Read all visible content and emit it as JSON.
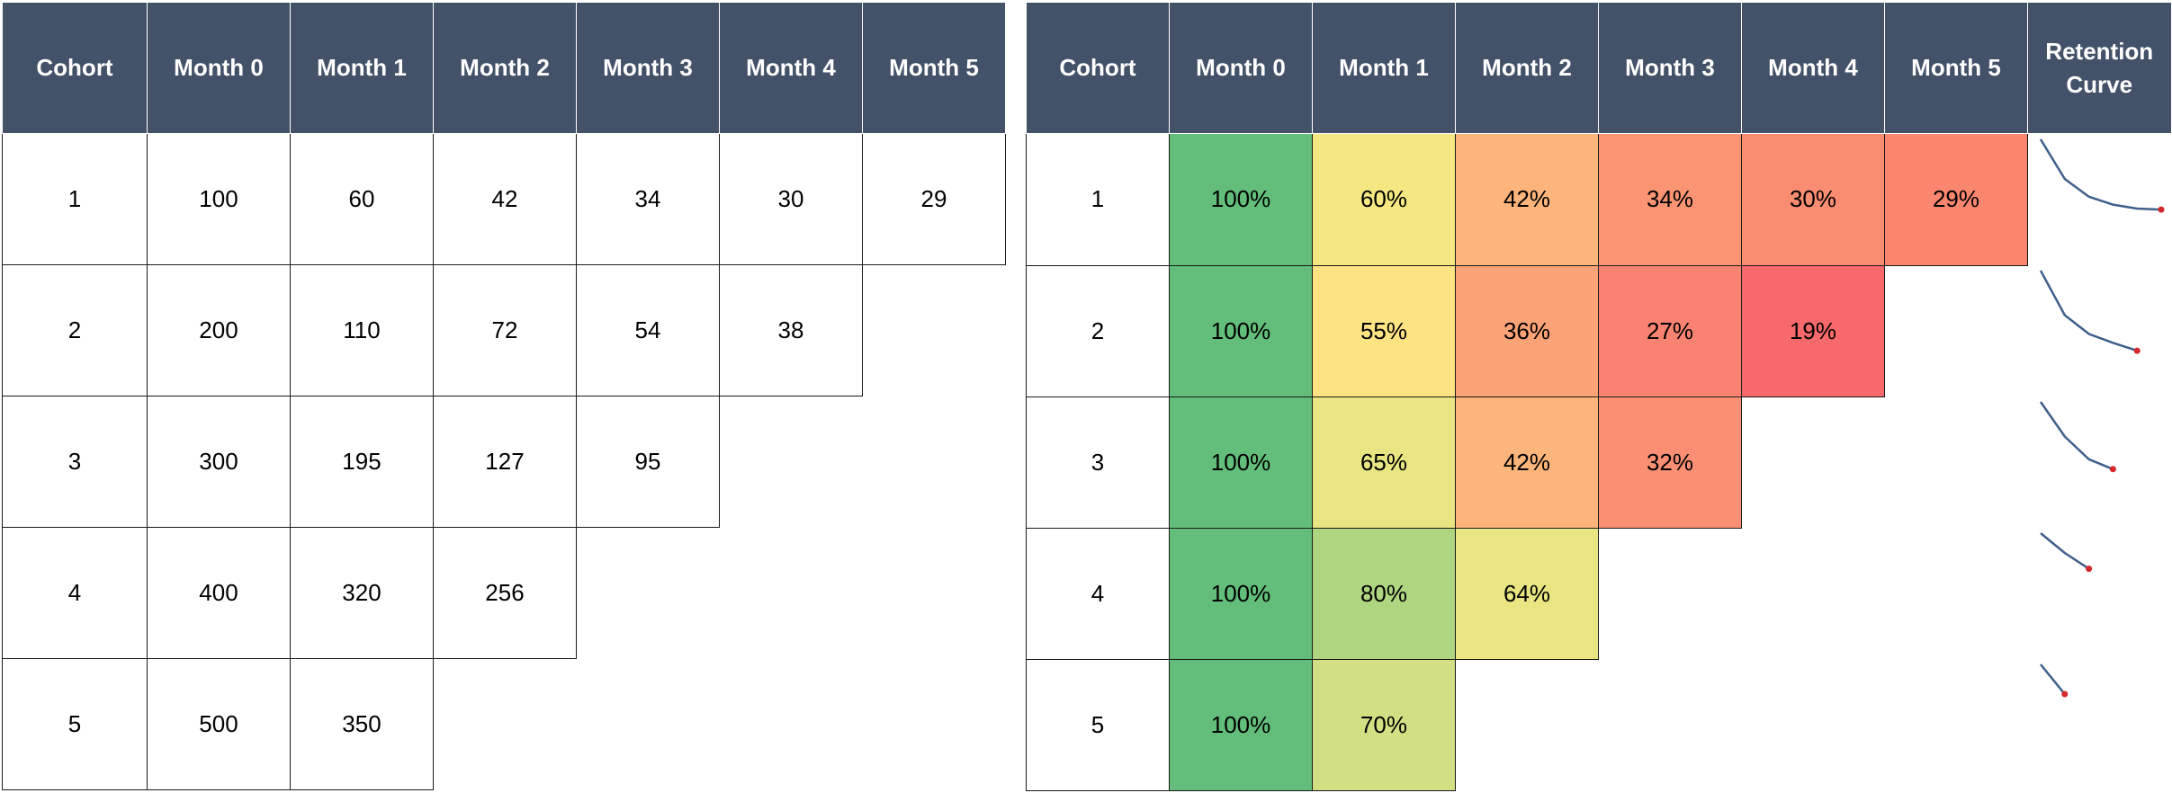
{
  "counts_table": {
    "headers": [
      "Cohort",
      "Month 0",
      "Month 1",
      "Month 2",
      "Month 3",
      "Month 4",
      "Month 5"
    ],
    "rows": [
      {
        "cohort": "1",
        "values": [
          "100",
          "60",
          "42",
          "34",
          "30",
          "29"
        ]
      },
      {
        "cohort": "2",
        "values": [
          "200",
          "110",
          "72",
          "54",
          "38"
        ]
      },
      {
        "cohort": "3",
        "values": [
          "300",
          "195",
          "127",
          "95"
        ]
      },
      {
        "cohort": "4",
        "values": [
          "400",
          "320",
          "256"
        ]
      },
      {
        "cohort": "5",
        "values": [
          "500",
          "350"
        ]
      }
    ]
  },
  "retention_table": {
    "headers": [
      "Cohort",
      "Month 0",
      "Month 1",
      "Month 2",
      "Month 3",
      "Month 4",
      "Month 5",
      "Retention Curve"
    ],
    "rows": [
      {
        "cohort": "1",
        "values": [
          "100%",
          "60%",
          "42%",
          "34%",
          "30%",
          "29%"
        ],
        "colors": [
          "#63BE7B",
          "#F5E883",
          "#FDB57B",
          "#FB9473",
          "#FA8C72",
          "#FA8670"
        ]
      },
      {
        "cohort": "2",
        "values": [
          "100%",
          "55%",
          "36%",
          "27%",
          "19%"
        ],
        "colors": [
          "#63BE7B",
          "#FEE383",
          "#FBA276",
          "#F98370",
          "#F8696B"
        ]
      },
      {
        "cohort": "3",
        "values": [
          "100%",
          "65%",
          "42%",
          "32%"
        ],
        "colors": [
          "#63BE7B",
          "#E8E582",
          "#FDB57B",
          "#FA8F73"
        ]
      },
      {
        "cohort": "4",
        "values": [
          "100%",
          "80%",
          "64%"
        ],
        "colors": [
          "#63BE7B",
          "#B0D580",
          "#E8E582"
        ]
      },
      {
        "cohort": "5",
        "values": [
          "100%",
          "70%"
        ],
        "colors": [
          "#63BE7B",
          "#D3DF82"
        ]
      }
    ],
    "sparkline_colors": {
      "line": "#3F5F8C",
      "end_marker": "#D62728"
    },
    "sparkline_scale": [
      0,
      100
    ],
    "retention_values": [
      [
        100,
        60,
        42,
        34,
        30,
        29
      ],
      [
        100,
        55,
        36,
        27,
        19
      ],
      [
        100,
        65,
        42,
        32
      ],
      [
        100,
        80,
        64
      ],
      [
        100,
        70
      ]
    ]
  }
}
